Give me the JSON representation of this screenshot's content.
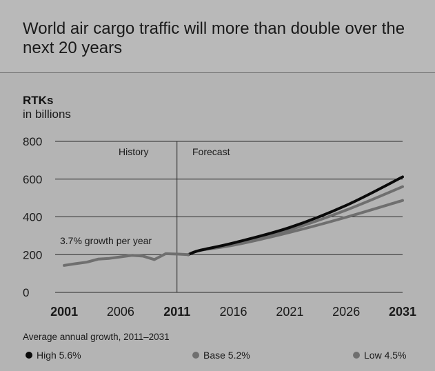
{
  "header": {
    "title": "World air cargo traffic will more than double over the next 20 years"
  },
  "legend": {
    "heading": "Average annual growth, 2011–2031",
    "items": [
      {
        "label": "High 5.6%",
        "color": "#0a0a0a"
      },
      {
        "label": "Base 5.2%",
        "color": "#6f6f6f"
      },
      {
        "label": "Low 4.5%",
        "color": "#6f6f6f"
      }
    ]
  },
  "chart_data": {
    "type": "line",
    "unit_title": "RTKs",
    "unit_subtitle": "in billions",
    "xlim": [
      2000.2,
      2031
    ],
    "ylim": [
      0,
      800
    ],
    "yticks": [
      0,
      200,
      400,
      600,
      800
    ],
    "xticks": [
      {
        "value": 2001,
        "label": "2001",
        "bold": true
      },
      {
        "value": 2006,
        "label": "2006",
        "bold": false
      },
      {
        "value": 2011,
        "label": "2011",
        "bold": true
      },
      {
        "value": 2016,
        "label": "2016",
        "bold": false
      },
      {
        "value": 2021,
        "label": "2021",
        "bold": false
      },
      {
        "value": 2026,
        "label": "2026",
        "bold": false
      },
      {
        "value": 2031,
        "label": "2031",
        "bold": true
      }
    ],
    "grid": "horizontal",
    "divider_year": 2011,
    "annotations": {
      "history": "History",
      "forecast": "Forecast",
      "growth": "3.7% growth per year"
    },
    "history": {
      "x": [
        2001,
        2002,
        2003,
        2004,
        2005,
        2006,
        2007,
        2008,
        2009,
        2010,
        2011,
        2012
      ],
      "y": [
        143,
        152,
        160,
        176,
        180,
        188,
        196,
        192,
        174,
        205,
        203,
        200
      ]
    },
    "series": [
      {
        "name": "High 5.6%",
        "color": "#0a0a0a",
        "x": [
          2012,
          2013,
          2016,
          2021,
          2026,
          2031
        ],
        "y": [
          200,
          222,
          262,
          344,
          461,
          612
        ]
      },
      {
        "name": "Base 5.2%",
        "color": "#6f6f6f",
        "x": [
          2012,
          2013,
          2016,
          2021,
          2026,
          2031
        ],
        "y": [
          200,
          222,
          256,
          332,
          436,
          560
        ]
      },
      {
        "name": "Low 4.5%",
        "color": "#6f6f6f",
        "x": [
          2012,
          2013,
          2016,
          2021,
          2026,
          2031
        ],
        "y": [
          200,
          222,
          250,
          318,
          398,
          487
        ]
      }
    ]
  }
}
